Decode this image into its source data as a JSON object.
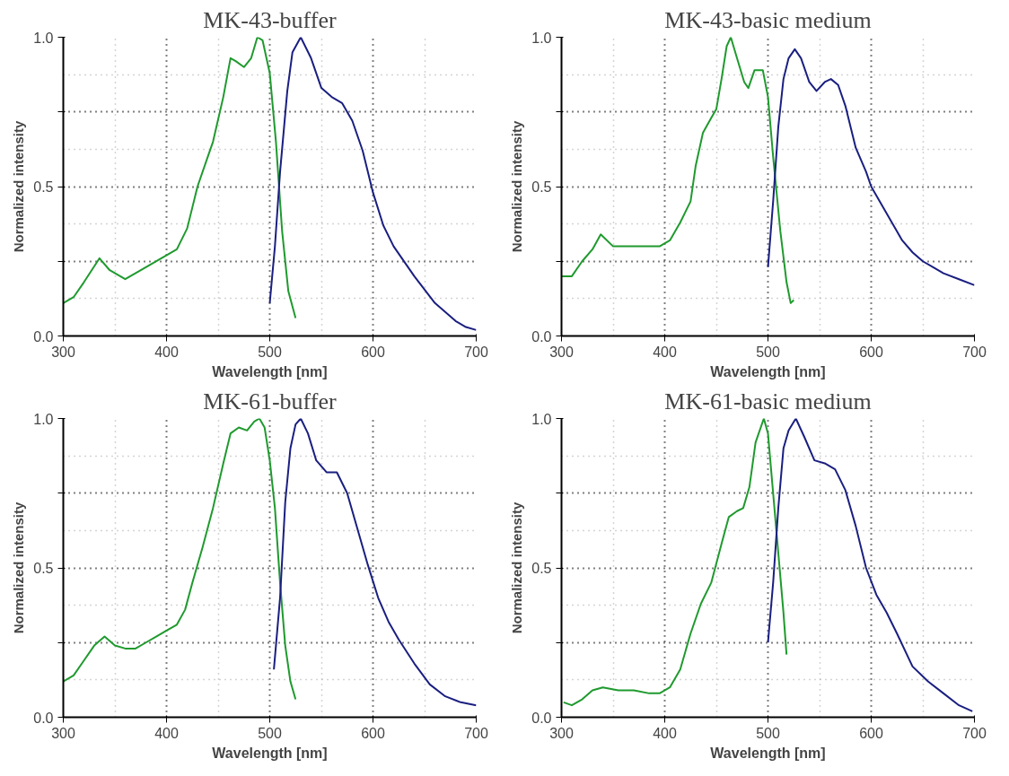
{
  "chart_data": [
    {
      "type": "line",
      "title": "MK-43-buffer",
      "xlabel": "Wavelength [nm]",
      "ylabel": "Normalized intensity",
      "xlim": [
        300,
        700
      ],
      "xticks": [
        300,
        400,
        500,
        600,
        700
      ],
      "ylim": [
        0,
        1
      ],
      "yticks": [
        {
          "value": 0,
          "label": "0.0"
        },
        {
          "value": 0.25,
          "label": null
        },
        {
          "value": 0.5,
          "label": "0.5"
        },
        {
          "value": 0.75,
          "label": null
        },
        {
          "value": 1,
          "label": "1.0"
        }
      ],
      "grid": true,
      "line_style": "solid",
      "marker": "none",
      "series": [
        {
          "color": "#1f9a2e",
          "x": [
            300,
            310,
            320,
            335,
            345,
            360,
            380,
            395,
            410,
            420,
            430,
            440,
            445,
            455,
            462,
            467,
            475,
            482,
            488,
            493,
            500,
            506,
            512,
            518,
            525
          ],
          "values": [
            0.11,
            0.13,
            0.18,
            0.26,
            0.22,
            0.19,
            0.23,
            0.26,
            0.29,
            0.36,
            0.5,
            0.6,
            0.65,
            0.8,
            0.93,
            0.92,
            0.9,
            0.93,
            1.0,
            0.99,
            0.88,
            0.65,
            0.35,
            0.15,
            0.06
          ]
        },
        {
          "color": "#1a1f80",
          "x": [
            500,
            505,
            510,
            517,
            522,
            530,
            540,
            550,
            560,
            570,
            580,
            590,
            600,
            610,
            620,
            640,
            660,
            680,
            690,
            700
          ],
          "values": [
            0.11,
            0.3,
            0.55,
            0.82,
            0.95,
            1.0,
            0.93,
            0.83,
            0.8,
            0.78,
            0.72,
            0.62,
            0.48,
            0.37,
            0.3,
            0.2,
            0.11,
            0.05,
            0.03,
            0.02
          ]
        }
      ]
    },
    {
      "type": "line",
      "title": "MK-43-basic medium",
      "xlabel": "Wavelength [nm]",
      "ylabel": "Normalized intensity",
      "xlim": [
        300,
        700
      ],
      "xticks": [
        300,
        400,
        500,
        600,
        700
      ],
      "ylim": [
        0,
        1
      ],
      "yticks": [
        {
          "value": 0,
          "label": "0.0"
        },
        {
          "value": 0.25,
          "label": null
        },
        {
          "value": 0.5,
          "label": "0.5"
        },
        {
          "value": 0.75,
          "label": null
        },
        {
          "value": 1,
          "label": "1.0"
        }
      ],
      "grid": true,
      "line_style": "solid",
      "marker": "none",
      "series": [
        {
          "color": "#1f9a2e",
          "x": [
            300,
            310,
            320,
            330,
            338,
            350,
            360,
            380,
            395,
            405,
            415,
            425,
            430,
            437,
            445,
            450,
            455,
            460,
            464,
            470,
            477,
            481,
            487,
            495,
            500,
            505,
            512,
            518,
            522,
            525
          ],
          "values": [
            0.2,
            0.2,
            0.25,
            0.29,
            0.34,
            0.3,
            0.3,
            0.3,
            0.3,
            0.32,
            0.38,
            0.45,
            0.57,
            0.68,
            0.73,
            0.76,
            0.86,
            0.97,
            1.0,
            0.93,
            0.85,
            0.83,
            0.89,
            0.89,
            0.8,
            0.6,
            0.35,
            0.18,
            0.11,
            0.12
          ]
        },
        {
          "color": "#1a1f80",
          "x": [
            500,
            505,
            510,
            515,
            520,
            526,
            532,
            540,
            547,
            555,
            561,
            568,
            575,
            585,
            595,
            600,
            610,
            620,
            630,
            640,
            650,
            660,
            670,
            685,
            700
          ],
          "values": [
            0.23,
            0.45,
            0.7,
            0.86,
            0.93,
            0.96,
            0.93,
            0.85,
            0.82,
            0.85,
            0.86,
            0.84,
            0.77,
            0.63,
            0.55,
            0.5,
            0.44,
            0.38,
            0.32,
            0.28,
            0.25,
            0.23,
            0.21,
            0.19,
            0.17
          ]
        }
      ]
    },
    {
      "type": "line",
      "title": "MK-61-buffer",
      "xlabel": "Wavelength [nm]",
      "ylabel": "Normalized intensity",
      "xlim": [
        300,
        700
      ],
      "xticks": [
        300,
        400,
        500,
        600,
        700
      ],
      "ylim": [
        0,
        1
      ],
      "yticks": [
        {
          "value": 0,
          "label": "0.0"
        },
        {
          "value": 0.25,
          "label": null
        },
        {
          "value": 0.5,
          "label": "0.5"
        },
        {
          "value": 0.75,
          "label": null
        },
        {
          "value": 1,
          "label": "1.0"
        }
      ],
      "grid": true,
      "line_style": "solid",
      "marker": "none",
      "series": [
        {
          "color": "#1f9a2e",
          "x": [
            300,
            310,
            320,
            330,
            340,
            350,
            360,
            370,
            380,
            390,
            400,
            410,
            418,
            425,
            435,
            445,
            455,
            462,
            470,
            478,
            485,
            490,
            495,
            500,
            505,
            510,
            515,
            520,
            525
          ],
          "values": [
            0.12,
            0.14,
            0.19,
            0.24,
            0.27,
            0.24,
            0.23,
            0.23,
            0.25,
            0.27,
            0.29,
            0.31,
            0.36,
            0.45,
            0.57,
            0.7,
            0.85,
            0.95,
            0.97,
            0.96,
            0.99,
            1.0,
            0.97,
            0.86,
            0.7,
            0.45,
            0.24,
            0.12,
            0.06
          ]
        },
        {
          "color": "#1a1f80",
          "x": [
            504,
            510,
            515,
            520,
            525,
            530,
            537,
            545,
            555,
            565,
            575,
            585,
            595,
            605,
            615,
            625,
            640,
            655,
            670,
            685,
            700
          ],
          "values": [
            0.16,
            0.4,
            0.72,
            0.9,
            0.98,
            1.0,
            0.95,
            0.86,
            0.82,
            0.82,
            0.75,
            0.63,
            0.51,
            0.4,
            0.32,
            0.26,
            0.18,
            0.11,
            0.07,
            0.05,
            0.04
          ]
        }
      ]
    },
    {
      "type": "line",
      "title": "MK-61-basic medium",
      "xlabel": "Wavelength [nm]",
      "ylabel": "Normalized intensity",
      "xlim": [
        300,
        700
      ],
      "xticks": [
        300,
        400,
        500,
        600,
        700
      ],
      "ylim": [
        0,
        1
      ],
      "yticks": [
        {
          "value": 0,
          "label": "0.0"
        },
        {
          "value": 0.25,
          "label": null
        },
        {
          "value": 0.5,
          "label": "0.5"
        },
        {
          "value": 0.75,
          "label": null
        },
        {
          "value": 1,
          "label": "1.0"
        }
      ],
      "grid": true,
      "line_style": "solid",
      "marker": "none",
      "series": [
        {
          "color": "#1f9a2e",
          "x": [
            302,
            310,
            320,
            330,
            340,
            355,
            370,
            385,
            395,
            405,
            415,
            425,
            435,
            445,
            455,
            462,
            470,
            476,
            482,
            488,
            496,
            500,
            505,
            510,
            515,
            518
          ],
          "values": [
            0.05,
            0.04,
            0.06,
            0.09,
            0.1,
            0.09,
            0.09,
            0.08,
            0.08,
            0.1,
            0.16,
            0.28,
            0.38,
            0.45,
            0.58,
            0.67,
            0.69,
            0.7,
            0.77,
            0.92,
            1.0,
            0.95,
            0.75,
            0.55,
            0.35,
            0.21
          ]
        },
        {
          "color": "#1a1f80",
          "x": [
            500,
            505,
            510,
            515,
            520,
            527,
            535,
            545,
            555,
            565,
            575,
            585,
            595,
            605,
            615,
            625,
            640,
            655,
            670,
            685,
            698
          ],
          "values": [
            0.25,
            0.45,
            0.7,
            0.9,
            0.96,
            1.0,
            0.94,
            0.86,
            0.85,
            0.83,
            0.76,
            0.64,
            0.5,
            0.41,
            0.35,
            0.28,
            0.17,
            0.12,
            0.08,
            0.04,
            0.02
          ]
        }
      ]
    }
  ]
}
